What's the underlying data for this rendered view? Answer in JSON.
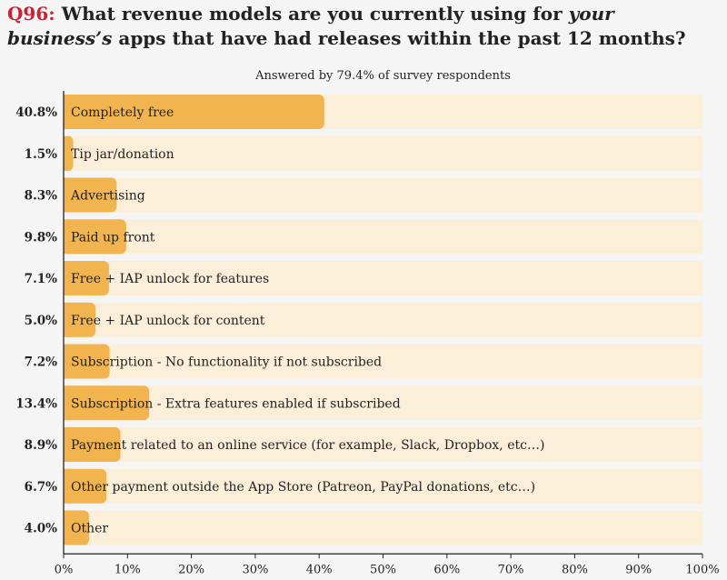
{
  "header": {
    "qnum": "Q96:",
    "title_before": " What revenue models are you currently using for ",
    "title_em": "your business’s",
    "title_after": " apps that have had releases within the past 12 months?"
  },
  "chart_data": {
    "type": "bar",
    "orientation": "horizontal",
    "subtitle": "Answered by 79.4% of survey respondents",
    "categories": [
      "Completely free",
      "Tip jar/donation",
      "Advertising",
      "Paid up front",
      "Free + IAP unlock for features",
      "Free + IAP unlock for content",
      "Subscription - No functionality if not subscribed",
      "Subscription - Extra features enabled if subscribed",
      "Payment related to an online service (for example, Slack, Dropbox, etc…)",
      "Other payment outside the App Store (Patreon, PayPal donations, etc…)",
      "Other"
    ],
    "values": [
      40.8,
      1.5,
      8.3,
      9.8,
      7.1,
      5.0,
      7.2,
      13.4,
      8.9,
      6.7,
      4.0
    ],
    "value_labels": [
      "40.8%",
      "1.5%",
      "8.3%",
      "9.8%",
      "7.1%",
      "5.0%",
      "7.2%",
      "13.4%",
      "8.9%",
      "6.7%",
      "4.0%"
    ],
    "xlim": [
      0,
      100
    ],
    "xticks": [
      "0%",
      "10%",
      "20%",
      "30%",
      "40%",
      "50%",
      "60%",
      "70%",
      "80%",
      "90%",
      "100%"
    ],
    "colors": {
      "bar": "#f2b44f",
      "track": "#fcefd9",
      "axis": "#222222"
    }
  }
}
